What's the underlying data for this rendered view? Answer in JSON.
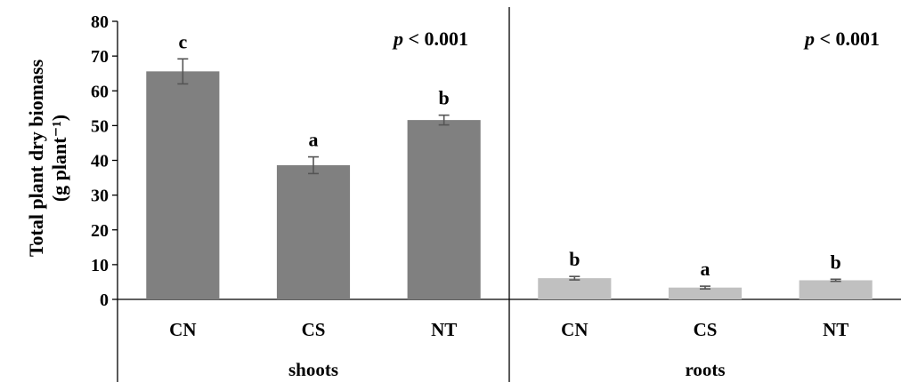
{
  "chart_data": {
    "type": "bar",
    "title": "",
    "ylabel": "Total plant  dry biomass",
    "ylabel_unit": "(g plant⁻¹)",
    "ylim": [
      0,
      80
    ],
    "yticks": [
      0,
      10,
      20,
      30,
      40,
      50,
      60,
      70,
      80
    ],
    "grid": false,
    "groups": [
      {
        "name": "shoots",
        "color": "#808080",
        "p_value": "< 0.001",
        "categories": [
          "CN",
          "CS",
          "NT"
        ],
        "values": [
          65.6,
          38.6,
          51.6
        ],
        "errors": [
          3.6,
          2.4,
          1.4
        ],
        "letters": [
          "c",
          "a",
          "b"
        ]
      },
      {
        "name": "roots",
        "color": "#c0c0c0",
        "p_value": "< 0.001",
        "categories": [
          "CN",
          "CS",
          "NT"
        ],
        "values": [
          6.1,
          3.4,
          5.5
        ],
        "errors": [
          0.5,
          0.4,
          0.3
        ],
        "letters": [
          "b",
          "a",
          "b"
        ]
      }
    ],
    "p_prefix": "p"
  }
}
